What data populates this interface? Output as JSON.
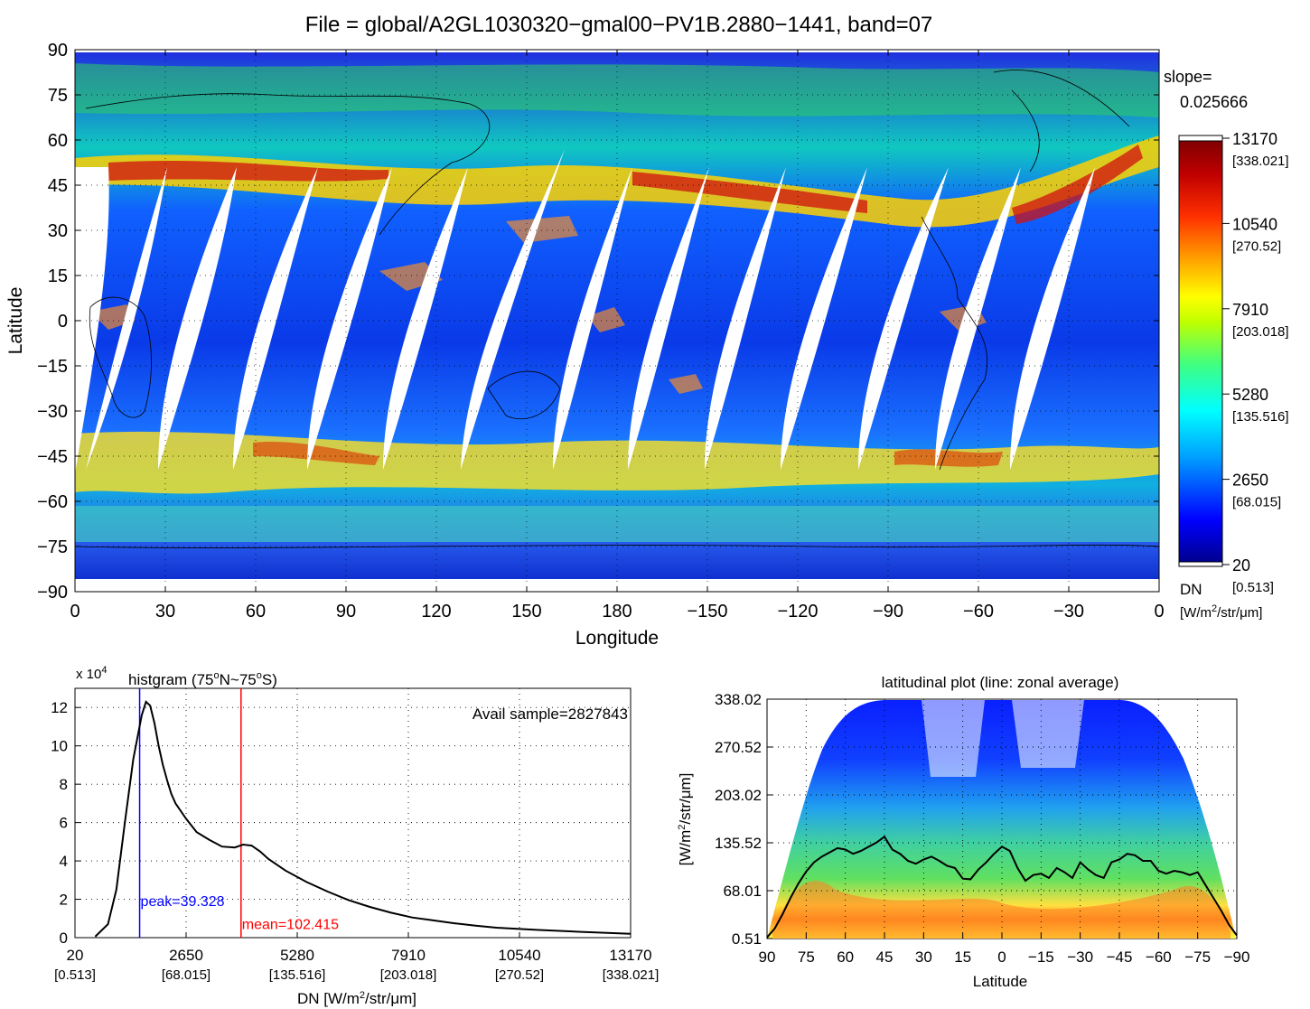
{
  "figure_title": "File = global/A2GL1030320−gmal00−PV1B.2880−1441, band=07",
  "chart_data": [
    {
      "type": "heatmap",
      "name": "global-map",
      "xlabel": "Longitude",
      "ylabel": "Latitude",
      "x_ticks": [
        "0",
        "30",
        "60",
        "90",
        "120",
        "150",
        "180",
        "−150",
        "−120",
        "−90",
        "−60",
        "−30",
        "0"
      ],
      "y_ticks": [
        "90",
        "75",
        "60",
        "45",
        "30",
        "15",
        "0",
        "−15",
        "−30",
        "−45",
        "−60",
        "−75",
        "−90"
      ],
      "xlim": [
        0,
        360
      ],
      "ylim": [
        -90,
        90
      ],
      "grid": true,
      "missing_swath_count": 14,
      "slope_label": "slope=",
      "slope_value": "0.025666",
      "colorbar": {
        "dn_ticks": [
          "13170",
          "10540",
          "7910",
          "5280",
          "2650",
          "20"
        ],
        "radiance_ticks": [
          "[338.021]",
          "[270.52]",
          "[203.018]",
          "[135.516]",
          "[68.015]",
          "[0.513]"
        ],
        "dn_label": "DN",
        "unit_label": "[W/m²/str/μm]",
        "colors": [
          "#00008f",
          "#0000ff",
          "#00a0ff",
          "#00ffff",
          "#40ff80",
          "#c0ff00",
          "#ffff00",
          "#ffa000",
          "#ff3000",
          "#c00000",
          "#800000"
        ]
      }
    },
    {
      "type": "line",
      "name": "histogram",
      "title_text": "histgram (75°N~75°S)",
      "title_parts": [
        "histgram (75",
        "o",
        "N~75",
        "o",
        "S)"
      ],
      "y_multiplier": "x 10",
      "y_multiplier_exp": "4",
      "xlabel_parts": [
        "DN [W/m",
        "2",
        "/str/μm]"
      ],
      "ylabel": "",
      "x_tick_values": [
        20,
        2650,
        5280,
        7910,
        10540,
        13170
      ],
      "x_tick_labels": [
        "20",
        "2650",
        "5280",
        "7910",
        "10540",
        "13170"
      ],
      "x_tick_sublabels": [
        "[0.513]",
        "[68.015]",
        "[135.516]",
        "[203.018]",
        "[270.52]",
        "[338.021]"
      ],
      "y_ticks": [
        "0",
        "2",
        "4",
        "6",
        "8",
        "10",
        "12"
      ],
      "xlim": [
        20,
        13170
      ],
      "ylim": [
        0,
        13
      ],
      "grid": true,
      "x": [
        500,
        800,
        1000,
        1200,
        1400,
        1600,
        1700,
        1800,
        1900,
        2000,
        2100,
        2200,
        2300,
        2400,
        2650,
        2900,
        3200,
        3500,
        3800,
        4000,
        4200,
        4400,
        4600,
        5000,
        5500,
        6000,
        6500,
        7000,
        7500,
        8000,
        8500,
        9000,
        9500,
        10000,
        10540,
        11000,
        12000,
        13170
      ],
      "values": [
        0.05,
        0.7,
        2.5,
        6.0,
        9.3,
        11.6,
        12.3,
        12.1,
        11.2,
        10.0,
        9.0,
        8.2,
        7.5,
        7.0,
        6.2,
        5.5,
        5.1,
        4.75,
        4.7,
        4.85,
        4.8,
        4.5,
        4.1,
        3.5,
        2.9,
        2.4,
        1.95,
        1.6,
        1.3,
        1.05,
        0.9,
        0.75,
        0.62,
        0.52,
        0.45,
        0.4,
        0.3,
        0.2
      ],
      "annotation": "Avail sample=2827843",
      "peak": {
        "x": 1550,
        "label": "peak=39.328",
        "color": "#0000ff"
      },
      "mean": {
        "x": 3950,
        "label": "mean=102.415",
        "color": "#ff0000"
      }
    },
    {
      "type": "heatmap",
      "name": "latitudinal-plot",
      "title": "latitudinal plot (line: zonal average)",
      "xlabel": "Latitude",
      "ylabel_parts": [
        "[W/m",
        "2",
        "/str/μm]"
      ],
      "x_ticks": [
        "90",
        "75",
        "60",
        "45",
        "30",
        "15",
        "0",
        "−15",
        "−30",
        "−45",
        "−60",
        "−75",
        "−90"
      ],
      "y_tick_values": [
        0.51,
        68.01,
        135.52,
        203.02,
        270.52,
        338.02
      ],
      "y_tick_labels": [
        "0.51",
        "68.01",
        "135.52",
        "203.02",
        "270.52",
        "338.02"
      ],
      "xlim": [
        90,
        -90
      ],
      "ylim": [
        0.51,
        338.02
      ],
      "grid": true,
      "zonal_average": {
        "lat": [
          90,
          87,
          84,
          81,
          78,
          75,
          72,
          69,
          66,
          63,
          60,
          57,
          54,
          51,
          48,
          45,
          42,
          39,
          36,
          33,
          30,
          27,
          24,
          21,
          18,
          15,
          12,
          9,
          6,
          3,
          0,
          -3,
          -6,
          -9,
          -12,
          -15,
          -18,
          -21,
          -24,
          -27,
          -30,
          -33,
          -36,
          -39,
          -42,
          -45,
          -48,
          -51,
          -54,
          -57,
          -60,
          -63,
          -66,
          -69,
          -72,
          -75,
          -78,
          -81,
          -84,
          -87,
          -90
        ],
        "values": [
          2,
          15,
          35,
          58,
          78,
          95,
          108,
          116,
          122,
          128,
          126,
          120,
          124,
          130,
          136,
          144,
          126,
          120,
          110,
          106,
          112,
          116,
          110,
          103,
          100,
          85,
          84,
          98,
          108,
          120,
          130,
          124,
          100,
          82,
          90,
          92,
          86,
          100,
          94,
          86,
          108,
          98,
          90,
          86,
          108,
          112,
          120,
          118,
          110,
          110,
          96,
          92,
          96,
          94,
          90,
          94,
          76,
          58,
          40,
          20,
          5
        ]
      }
    }
  ]
}
